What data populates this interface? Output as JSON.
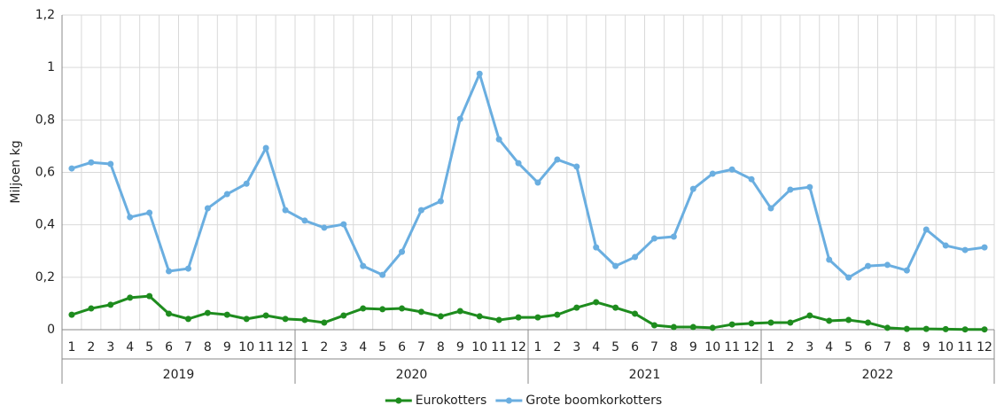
{
  "chart_data": {
    "type": "line",
    "y_label": "Miljoen kg",
    "categories": [
      "1",
      "2",
      "3",
      "4",
      "5",
      "6",
      "7",
      "8",
      "9",
      "10",
      "11",
      "12",
      "1",
      "2",
      "3",
      "4",
      "5",
      "6",
      "7",
      "8",
      "9",
      "10",
      "11",
      "12",
      "1",
      "2",
      "3",
      "4",
      "5",
      "6",
      "7",
      "8",
      "9",
      "10",
      "11",
      "12",
      "1",
      "2",
      "3",
      "4",
      "5",
      "6",
      "7",
      "8",
      "9",
      "10",
      "11",
      "12"
    ],
    "years": [
      "2019",
      "2020",
      "2021",
      "2022"
    ],
    "series": [
      {
        "name": "Eurokotters",
        "color": "#1e8c1e",
        "values": [
          0.057,
          0.081,
          0.095,
          0.122,
          0.128,
          0.061,
          0.041,
          0.064,
          0.057,
          0.041,
          0.054,
          0.041,
          0.037,
          0.027,
          0.054,
          0.081,
          0.078,
          0.081,
          0.068,
          0.051,
          0.071,
          0.051,
          0.037,
          0.047,
          0.047,
          0.057,
          0.084,
          0.105,
          0.084,
          0.061,
          0.017,
          0.01,
          0.01,
          0.007,
          0.02,
          0.024,
          0.027,
          0.027,
          0.054,
          0.034,
          0.037,
          0.027,
          0.007,
          0.003,
          0.003,
          0.002,
          0.001,
          0.001
        ]
      },
      {
        "name": "Grote boomkorkotters",
        "color": "#6aaee0",
        "values": [
          0.615,
          0.638,
          0.632,
          0.429,
          0.446,
          0.223,
          0.233,
          0.463,
          0.517,
          0.557,
          0.693,
          0.456,
          0.416,
          0.389,
          0.402,
          0.243,
          0.209,
          0.297,
          0.456,
          0.49,
          0.804,
          0.976,
          0.726,
          0.635,
          0.561,
          0.649,
          0.622,
          0.314,
          0.243,
          0.277,
          0.348,
          0.355,
          0.537,
          0.595,
          0.611,
          0.574,
          0.463,
          0.534,
          0.544,
          0.267,
          0.199,
          0.243,
          0.247,
          0.226,
          0.382,
          0.321,
          0.304,
          0.314
        ]
      }
    ],
    "ylim": [
      0,
      1.2
    ],
    "yticks": [
      0,
      {
        "value": 0.2,
        "label": "0,2"
      },
      {
        "value": 0.4,
        "label": "0,4"
      },
      {
        "value": 0.6,
        "label": "0,6"
      },
      {
        "value": 0.8,
        "label": "0,8"
      },
      1,
      {
        "value": 1.2,
        "label": "1,2"
      }
    ],
    "grid": true,
    "legend": "bottom"
  }
}
